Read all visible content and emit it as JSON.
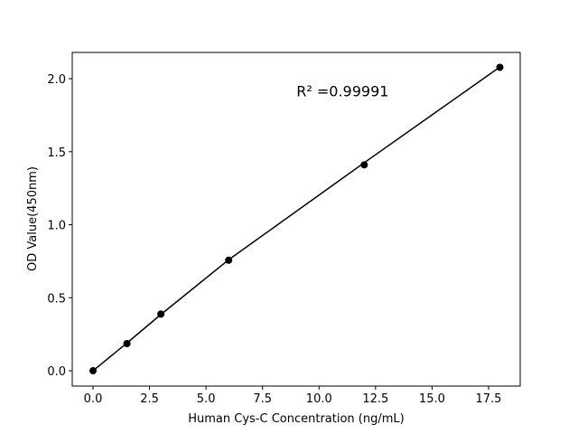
{
  "chart_data": {
    "type": "scatter",
    "title": "",
    "xlabel": "Human Cys-C Concentration (ng/mL)",
    "ylabel": "OD Value(450nm)",
    "xlim": [
      -0.92,
      18.9
    ],
    "ylim": [
      -0.105,
      2.18
    ],
    "xticks": [
      0,
      2.5,
      5,
      7.5,
      10,
      12.5,
      15,
      17.5
    ],
    "xtick_labels": [
      "0.0",
      "2.5",
      "5.0",
      "7.5",
      "10.0",
      "12.5",
      "15.0",
      "17.5"
    ],
    "yticks": [
      0,
      0.5,
      1,
      1.5,
      2
    ],
    "ytick_labels": [
      "0.0",
      "0.5",
      "1.0",
      "1.5",
      "2.0"
    ],
    "grid": false,
    "x": [
      0,
      1.5,
      3,
      6,
      12,
      18
    ],
    "series": [
      {
        "kind": "points",
        "values": [
          0.0,
          0.186,
          0.388,
          0.757,
          1.41,
          2.078
        ],
        "color": "#000000"
      },
      {
        "kind": "fit-line",
        "values": [
          0.0,
          0.19,
          0.385,
          0.76,
          1.425,
          2.08
        ],
        "color": "#000000"
      }
    ],
    "annotation": {
      "text": "R² =0.99991",
      "x": 9.0,
      "y": 1.88
    }
  }
}
